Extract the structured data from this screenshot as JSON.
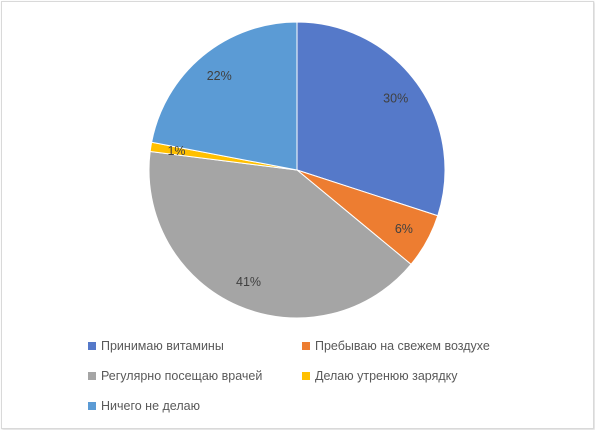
{
  "chart_data": {
    "type": "pie",
    "title": "",
    "start_angle": "top",
    "direction": "clockwise",
    "categories": [
      "Принимаю витамины",
      "Пребываю на свежем воздухе",
      "Регулярно посещаю врачей",
      "Делаю утренюю зарядку",
      "Ничего не делаю"
    ],
    "values": [
      30,
      6,
      41,
      1,
      22
    ],
    "data_labels": [
      "30%",
      "6%",
      "41%",
      "1%",
      "22%"
    ],
    "colors": [
      "#5579C9",
      "#ED7D31",
      "#A5A5A5",
      "#FFC000",
      "#5B9BD5"
    ],
    "legend_position": "bottom"
  }
}
